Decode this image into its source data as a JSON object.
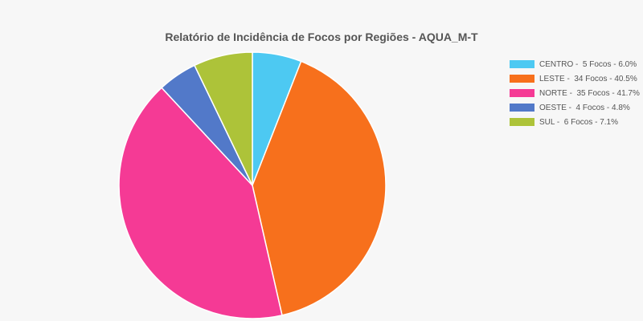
{
  "chart_data": {
    "type": "pie",
    "title": "Relatório de Incidência de Focos por Regiões - AQUA_M-T",
    "legend_position": "right",
    "slices": [
      {
        "label": "CENTRO -  5 Focos - 6.0%",
        "name": "CENTRO",
        "value": 5,
        "percent": 6.0,
        "color": "#4dc9f2"
      },
      {
        "label": "LESTE -  34 Focos - 40.5%",
        "name": "LESTE",
        "value": 34,
        "percent": 40.5,
        "color": "#f7701c"
      },
      {
        "label": "NORTE -  35 Focos - 41.7%",
        "name": "NORTE",
        "value": 35,
        "percent": 41.7,
        "color": "#f53a95"
      },
      {
        "label": "OESTE -  4 Focos - 4.8%",
        "name": "OESTE",
        "value": 4,
        "percent": 4.8,
        "color": "#5279c9"
      },
      {
        "label": "SUL -  6 Focos - 7.1%",
        "name": "SUL",
        "value": 6,
        "percent": 7.1,
        "color": "#adc339"
      }
    ]
  }
}
